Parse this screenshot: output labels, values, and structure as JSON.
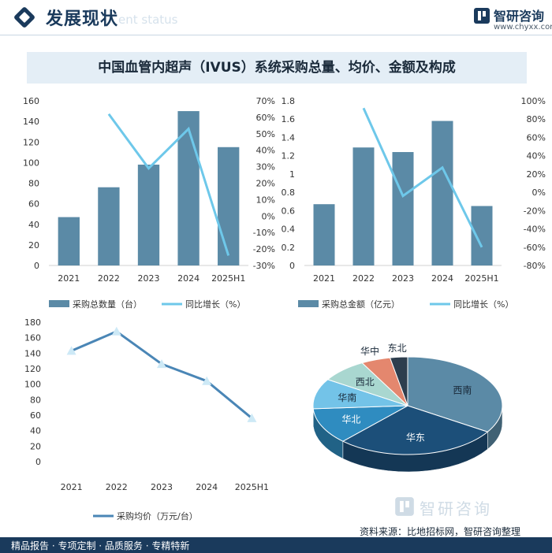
{
  "header": {
    "title": "发展现状",
    "subtitle": "ent status"
  },
  "brand": {
    "name": "智研咨询",
    "url": "www.chyxx.com"
  },
  "main_title": "中国血管内超声（IVUS）系统采购总量、均价、金额及构成",
  "colors": {
    "bar": "#5b8aa6",
    "line": "#6ec8ea",
    "price_line": "#4a86b6",
    "price_marker": "#cde9f6"
  },
  "chart_data": [
    {
      "type": "bar",
      "categories": [
        "2021",
        "2022",
        "2023",
        "2024",
        "2025H1"
      ],
      "series": [
        {
          "name": "采购总数量（台）",
          "type": "bar",
          "axis": "left",
          "values": [
            47,
            76,
            98,
            150,
            115
          ]
        },
        {
          "name": "同比增长（%）",
          "type": "line",
          "axis": "right",
          "values": [
            null,
            62,
            29,
            53,
            -24
          ]
        }
      ],
      "ylim": [
        0,
        160
      ],
      "y_ticks": [
        "0",
        "20",
        "40",
        "60",
        "80",
        "100",
        "120",
        "140",
        "160"
      ],
      "y2lim": [
        -30,
        70
      ],
      "y2_ticks": [
        "-30%",
        "-20%",
        "-10%",
        "0%",
        "10%",
        "20%",
        "30%",
        "40%",
        "50%",
        "60%",
        "70%"
      ],
      "legend": "bottom"
    },
    {
      "type": "bar",
      "categories": [
        "2021",
        "2022",
        "2023",
        "2024",
        "2025H1"
      ],
      "series": [
        {
          "name": "采购总金额（亿元）",
          "type": "bar",
          "axis": "left",
          "values": [
            0.67,
            1.29,
            1.24,
            1.58,
            0.65
          ]
        },
        {
          "name": "同比增长（%）",
          "type": "line",
          "axis": "right",
          "values": [
            null,
            92,
            -4,
            27,
            -60
          ]
        }
      ],
      "ylim": [
        0,
        1.8
      ],
      "y_ticks": [
        "0",
        "0.2",
        "0.4",
        "0.6",
        "0.8",
        "1",
        "1.2",
        "1.4",
        "1.6",
        "1.8"
      ],
      "y2lim": [
        -80,
        100
      ],
      "y2_ticks": [
        "-80%",
        "-60%",
        "-40%",
        "-20%",
        "0%",
        "20%",
        "40%",
        "60%",
        "80%",
        "100%"
      ],
      "legend": "bottom"
    },
    {
      "type": "line",
      "categories": [
        "2021",
        "2022",
        "2023",
        "2024",
        "2025H1"
      ],
      "series": [
        {
          "name": "采购均价（万元/台）",
          "values": [
            143,
            168,
            126,
            104,
            56
          ]
        }
      ],
      "ylim": [
        0,
        180
      ],
      "y_ticks": [
        "0",
        "20",
        "40",
        "60",
        "80",
        "100",
        "120",
        "140",
        "160",
        "180"
      ],
      "legend": "bottom"
    },
    {
      "type": "pie",
      "slices": [
        {
          "label": "西南",
          "value": 34,
          "color": "#5b8aa6"
        },
        {
          "label": "华东",
          "value": 28,
          "color": "#1c4f79"
        },
        {
          "label": "华北",
          "value": 12,
          "color": "#2f8cc0"
        },
        {
          "label": "华南",
          "value": 10,
          "color": "#73c3e8"
        },
        {
          "label": "西北",
          "value": 8,
          "color": "#a9d7d0"
        },
        {
          "label": "华中",
          "value": 5,
          "color": "#e4876e"
        },
        {
          "label": "东北",
          "value": 3,
          "color": "#2d3e4e"
        }
      ]
    }
  ],
  "footer": {
    "left": "精品报告 · 专项定制 · 品质服务 · 专精特新",
    "source": "资料来源：比地招标网，智研咨询整理"
  }
}
